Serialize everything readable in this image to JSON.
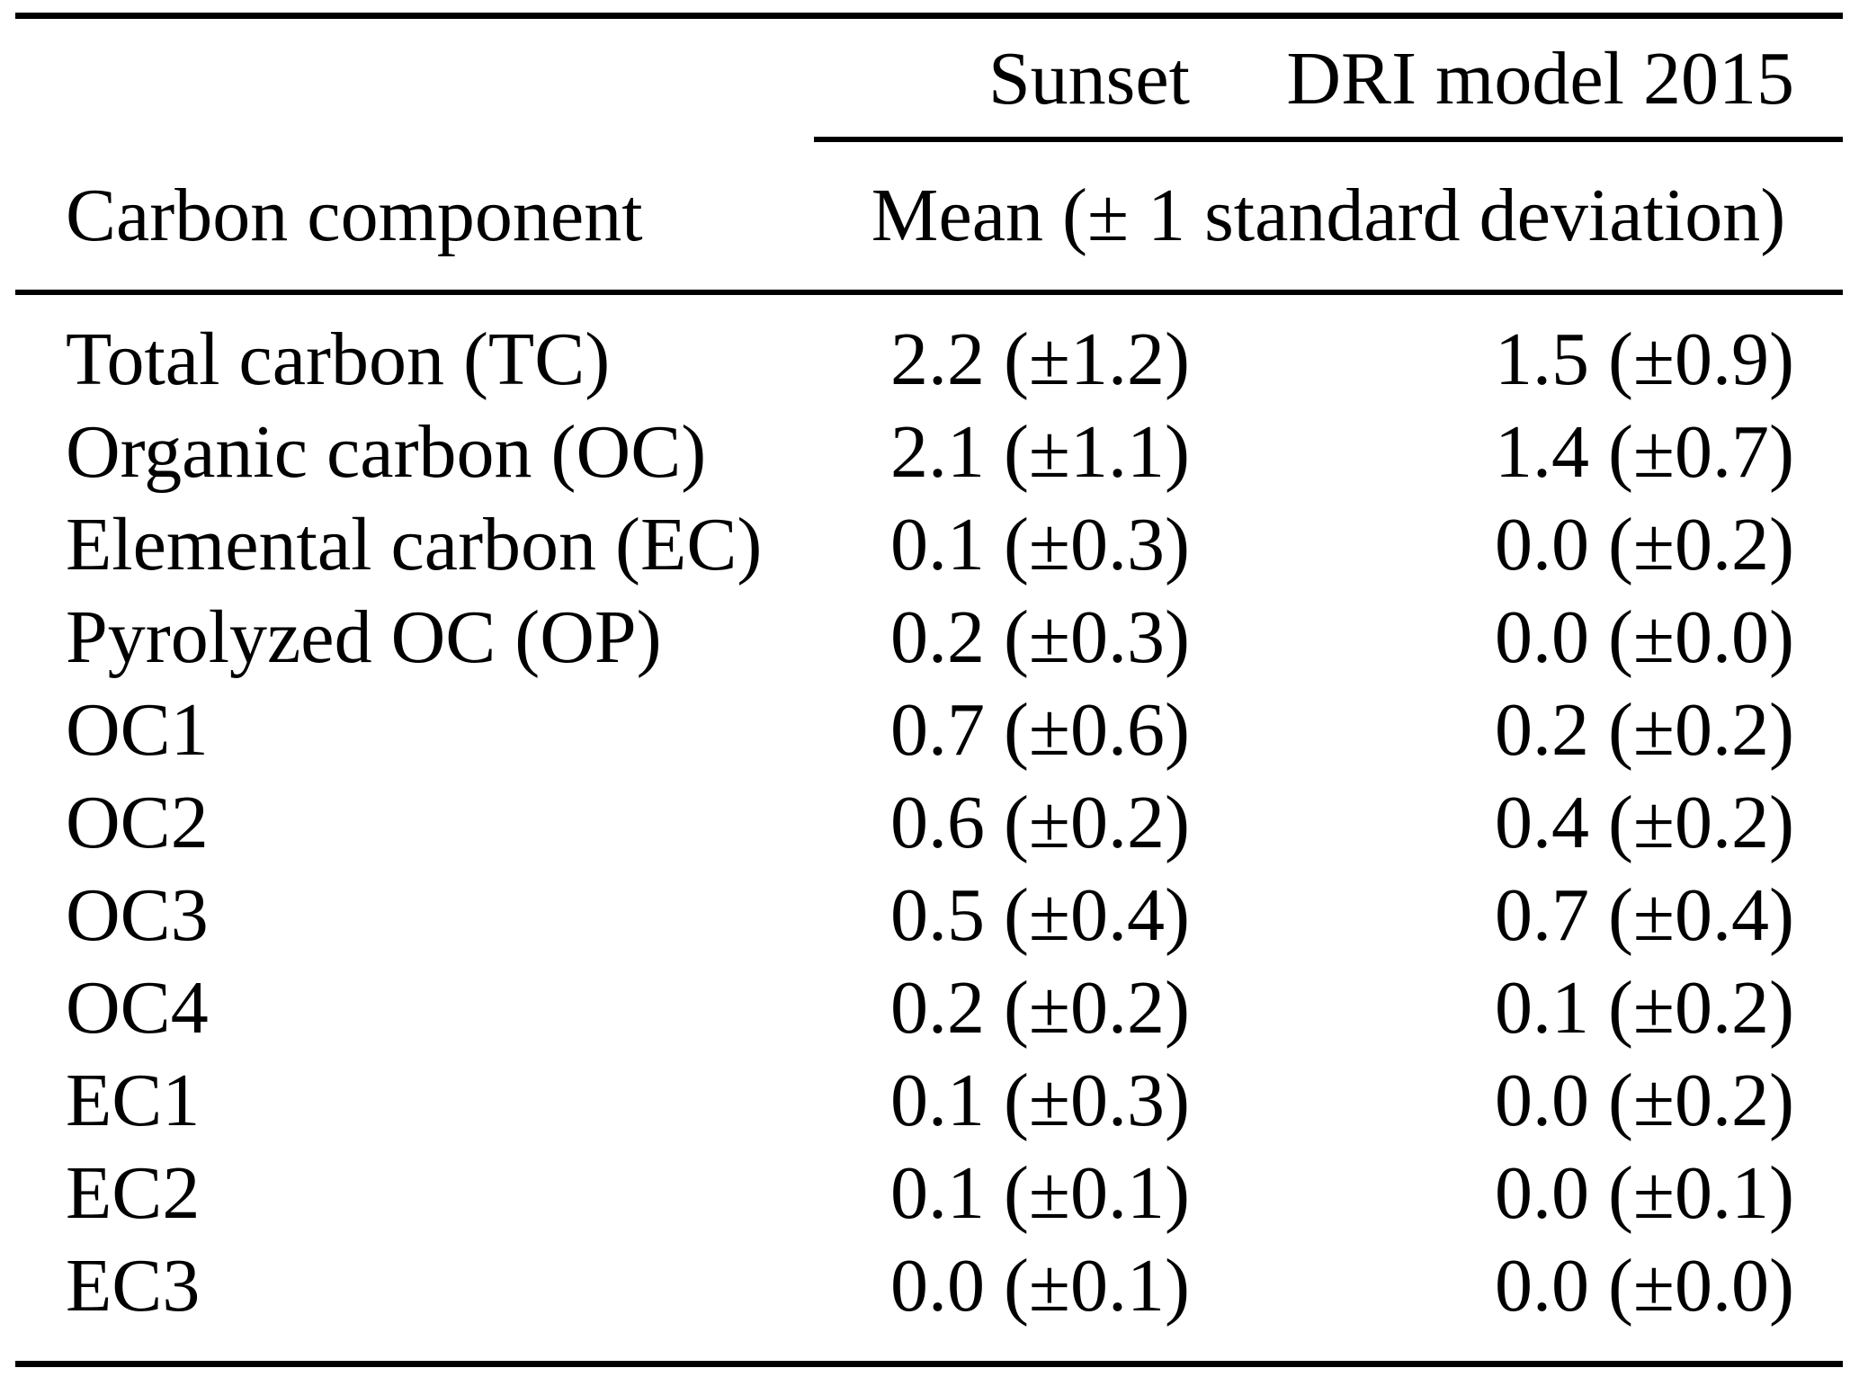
{
  "table": {
    "column_group_headers": {
      "sunset": "Sunset",
      "dri": "DRI model 2015"
    },
    "row_header": "Carbon component",
    "span_header": "Mean (± 1 standard deviation)",
    "rows": [
      {
        "component": "Total carbon (TC)",
        "sunset": "2.2 (±1.2)",
        "dri": "1.5 (±0.9)"
      },
      {
        "component": "Organic carbon (OC)",
        "sunset": "2.1 (±1.1)",
        "dri": "1.4 (±0.7)"
      },
      {
        "component": "Elemental carbon (EC)",
        "sunset": "0.1 (±0.3)",
        "dri": "0.0 (±0.2)"
      },
      {
        "component": "Pyrolyzed OC (OP)",
        "sunset": "0.2 (±0.3)",
        "dri": "0.0 (±0.0)"
      },
      {
        "component": "OC1",
        "sunset": "0.7 (±0.6)",
        "dri": "0.2 (±0.2)"
      },
      {
        "component": "OC2",
        "sunset": "0.6 (±0.2)",
        "dri": "0.4 (±0.2)"
      },
      {
        "component": "OC3",
        "sunset": "0.5 (±0.4)",
        "dri": "0.7 (±0.4)"
      },
      {
        "component": "OC4",
        "sunset": "0.2 (±0.2)",
        "dri": "0.1 (±0.2)"
      },
      {
        "component": "EC1",
        "sunset": "0.1 (±0.3)",
        "dri": "0.0 (±0.2)"
      },
      {
        "component": "EC2",
        "sunset": "0.1 (±0.1)",
        "dri": "0.0 (±0.1)"
      },
      {
        "component": "EC3",
        "sunset": "0.0 (±0.1)",
        "dri": "0.0 (±0.0)"
      }
    ]
  },
  "chart_data": {
    "type": "table",
    "title": "",
    "columns": [
      "Carbon component",
      "Sunset Mean (± 1 standard deviation)",
      "DRI model 2015 Mean (± 1 standard deviation)"
    ],
    "series": [
      {
        "name": "Sunset mean",
        "values": [
          2.2,
          2.1,
          0.1,
          0.2,
          0.7,
          0.6,
          0.5,
          0.2,
          0.1,
          0.1,
          0.0
        ]
      },
      {
        "name": "Sunset sd",
        "values": [
          1.2,
          1.1,
          0.3,
          0.3,
          0.6,
          0.2,
          0.4,
          0.2,
          0.3,
          0.1,
          0.1
        ]
      },
      {
        "name": "DRI 2015 mean",
        "values": [
          1.5,
          1.4,
          0.0,
          0.0,
          0.2,
          0.4,
          0.7,
          0.1,
          0.0,
          0.0,
          0.0
        ]
      },
      {
        "name": "DRI 2015 sd",
        "values": [
          0.9,
          0.7,
          0.2,
          0.0,
          0.2,
          0.2,
          0.4,
          0.2,
          0.2,
          0.1,
          0.0
        ]
      }
    ],
    "categories": [
      "Total carbon (TC)",
      "Organic carbon (OC)",
      "Elemental carbon (EC)",
      "Pyrolyzed OC (OP)",
      "OC1",
      "OC2",
      "OC3",
      "OC4",
      "EC1",
      "EC2",
      "EC3"
    ]
  },
  "colors": {
    "text": "#000000",
    "background": "#ffffff",
    "rule": "#000000"
  }
}
